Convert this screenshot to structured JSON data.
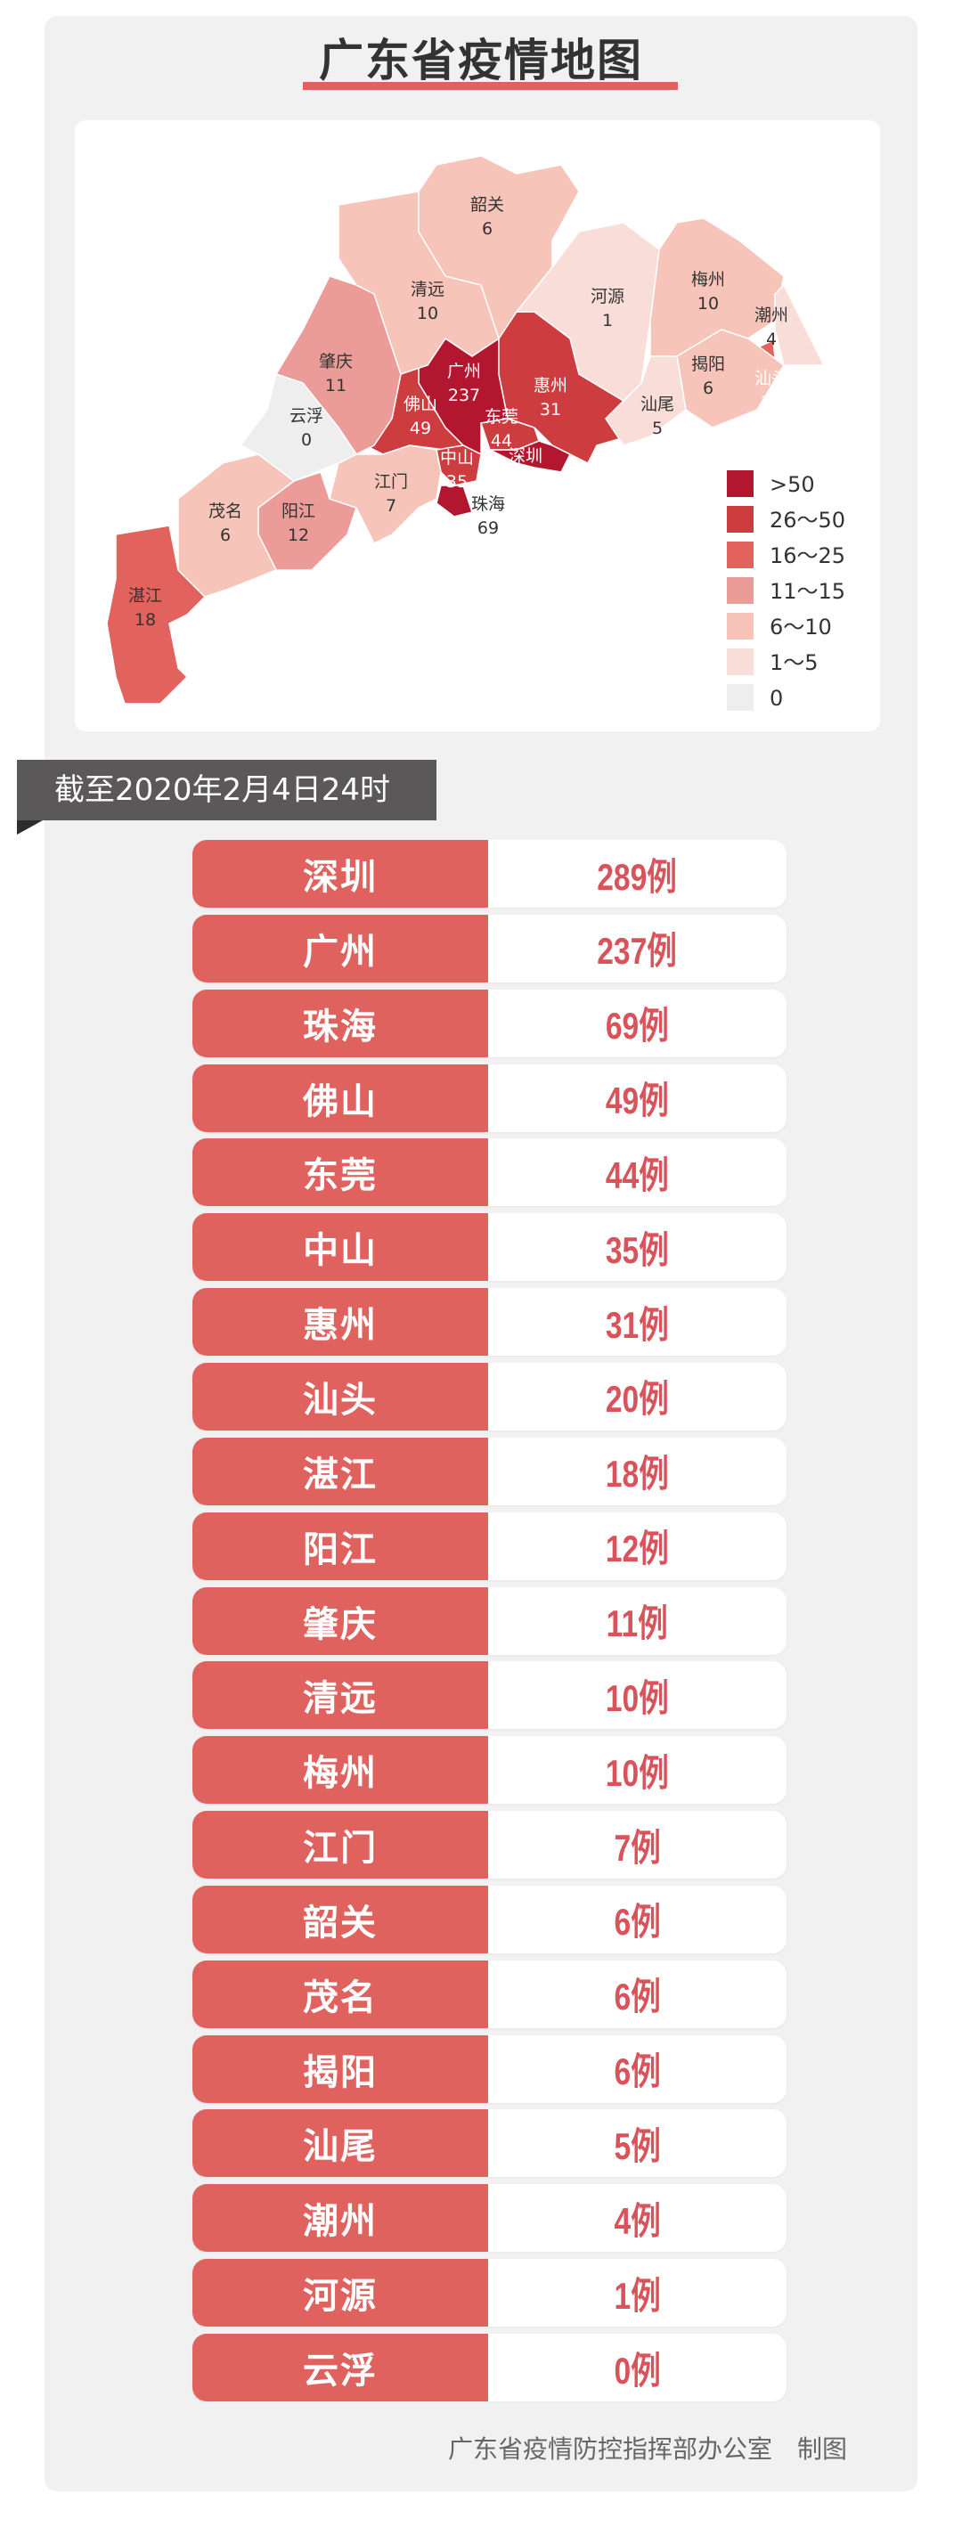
{
  "title": "广东省疫情地图",
  "date_banner": "截至2020年2月4日24时",
  "footer": "广东省疫情防控指挥部办公室　制图",
  "legend": [
    {
      "label": ">50",
      "color": "#b3172f"
    },
    {
      "label": "26～50",
      "color": "#cd3d3f"
    },
    {
      "label": "16～25",
      "color": "#e2625d"
    },
    {
      "label": "11～15",
      "color": "#ec9c98"
    },
    {
      "label": "6～10",
      "color": "#f6c4b8"
    },
    {
      "label": "1～5",
      "color": "#f9ddd8"
    },
    {
      "label": "0",
      "color": "#efeeee"
    }
  ],
  "unit": "例",
  "cities": [
    {
      "name": "深圳",
      "count": 289
    },
    {
      "name": "广州",
      "count": 237
    },
    {
      "name": "珠海",
      "count": 69
    },
    {
      "name": "佛山",
      "count": 49
    },
    {
      "name": "东莞",
      "count": 44
    },
    {
      "name": "中山",
      "count": 35
    },
    {
      "name": "惠州",
      "count": 31
    },
    {
      "name": "汕头",
      "count": 20
    },
    {
      "name": "湛江",
      "count": 18
    },
    {
      "name": "阳江",
      "count": 12
    },
    {
      "name": "肇庆",
      "count": 11
    },
    {
      "name": "清远",
      "count": 10
    },
    {
      "name": "梅州",
      "count": 10
    },
    {
      "name": "江门",
      "count": 7
    },
    {
      "name": "韶关",
      "count": 6
    },
    {
      "name": "茂名",
      "count": 6
    },
    {
      "name": "揭阳",
      "count": 6
    },
    {
      "name": "汕尾",
      "count": 5
    },
    {
      "name": "潮州",
      "count": 4
    },
    {
      "name": "河源",
      "count": 1
    },
    {
      "name": "云浮",
      "count": 0
    }
  ],
  "colors": {
    "row_label_bg": "#e0625f",
    "row_value_text": "#d8545a",
    "banner_bg": "#5a5859"
  }
}
